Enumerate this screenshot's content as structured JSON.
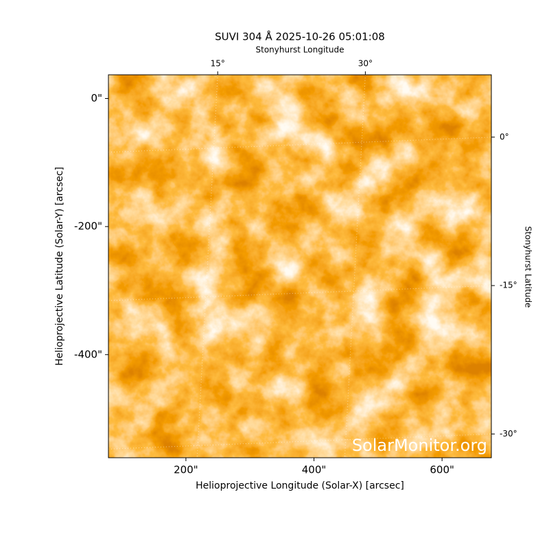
{
  "chart_data": {
    "type": "image",
    "title": "SUVI 304 Å 2025-10-26 05:01:08",
    "xlabel": "Helioprojective Longitude (Solar-X) [arcsec]",
    "ylabel": "Helioprojective Latitude (Solar-Y) [arcsec]",
    "x2label": "Stonyhurst Longitude",
    "y2label": "Stonyhurst Latitude",
    "watermark": "SolarMonitor.org",
    "xlim": [
      79,
      677
    ],
    "ylim": [
      -561,
      37
    ],
    "xticks": [
      {
        "value": 200,
        "label": "200\""
      },
      {
        "value": 400,
        "label": "400\""
      },
      {
        "value": 600,
        "label": "600\""
      }
    ],
    "yticks": [
      {
        "value": 0,
        "label": "0\""
      },
      {
        "value": -200,
        "label": "-200\""
      },
      {
        "value": -400,
        "label": "-400\""
      }
    ],
    "x2lim": [
      3.9,
      42.8
    ],
    "x2ticks": [
      {
        "value": 15,
        "label": "15°"
      },
      {
        "value": 30,
        "label": "30°"
      }
    ],
    "y2lim": [
      -32.4,
      6.3
    ],
    "y2ticks": [
      {
        "value": 0,
        "label": "0°"
      },
      {
        "value": -15,
        "label": "-15°"
      },
      {
        "value": -30,
        "label": "-30°"
      }
    ],
    "grid": true
  }
}
